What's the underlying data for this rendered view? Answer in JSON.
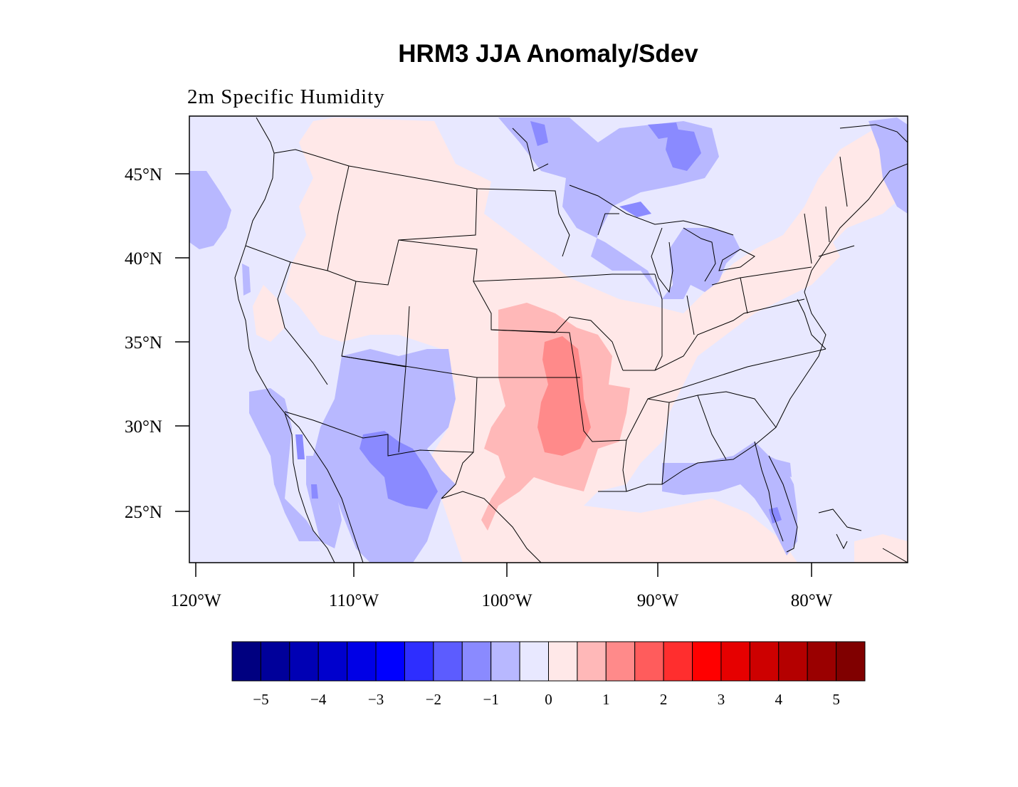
{
  "map": {
    "title": "HRM3 JJA Anomaly/Sdev",
    "subtitle": "2m Specific Humidity",
    "lat_ticks": [
      "45°N",
      "40°N",
      "35°N",
      "30°N",
      "25°N"
    ],
    "lon_ticks": [
      "120°W",
      "110°W",
      "100°W",
      "90°W",
      "80°W"
    ],
    "colorbar": {
      "colors": [
        "#000080",
        "#00009a",
        "#0000b4",
        "#0000cd",
        "#0000e6",
        "#0000ff",
        "#2e2eff",
        "#5c5cff",
        "#8a8aff",
        "#b8b8ff",
        "#e8e8ff",
        "#ffe8e8",
        "#ffb8b8",
        "#ff8a8a",
        "#ff5c5c",
        "#ff2e2e",
        "#ff0000",
        "#e60000",
        "#cd0000",
        "#b40000",
        "#9a0000",
        "#800000"
      ],
      "labels": [
        "−5",
        "−4",
        "−3",
        "−2",
        "−1",
        "0",
        "1",
        "2",
        "3",
        "4",
        "5"
      ]
    },
    "anomaly_colors": {
      "base": "#e8e8ff",
      "neg1": "#b8b8ff",
      "neg2": "#8a8aff",
      "pos1": "#ffe8e8",
      "pos2": "#ffb8b8",
      "pos3": "#ff8a8a"
    }
  }
}
